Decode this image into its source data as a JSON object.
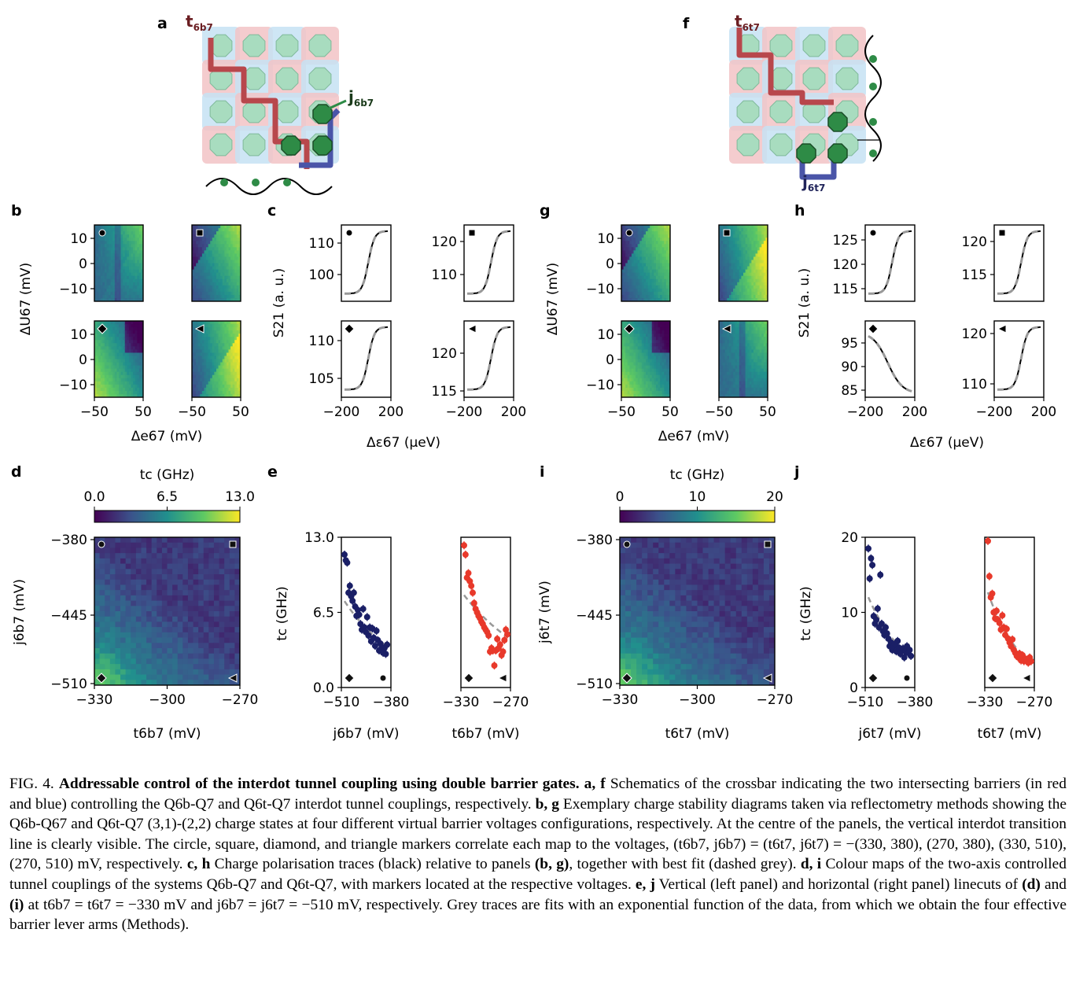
{
  "figure_label": "FIG. 4.",
  "caption": {
    "title": "Addressable control of the interdot tunnel coupling using double barrier gates.",
    "segments": [
      {
        "b": "a, f",
        "t": " Schematics of the crossbar indicating the two intersecting barriers (in red and blue) controlling the Q6b-Q7 and Q6t-Q7 interdot tunnel couplings, respectively. "
      },
      {
        "b": "b, g",
        "t": " Exemplary charge stability diagrams taken via reflectometry methods showing the Q6b-Q67 and Q6t-Q7 (3,1)-(2,2) charge states at four different virtual barrier voltages configurations, respectively. At the centre of the panels, the vertical interdot transition line is clearly visible. The circle, square, diamond, and triangle markers correlate each map to the voltages, (t6b7, j6b7) = (t6t7, j6t7) = −(330, 380), (270, 380), (330, 510), (270, 510) mV, respectively. "
      },
      {
        "b": "c, h",
        "t": " Charge polarisation traces (black) relative to panels "
      },
      {
        "b": "(b, g)",
        "t": ", together with best fit (dashed grey). "
      },
      {
        "b": "d, i",
        "t": " Colour maps of the two-axis controlled tunnel couplings of the systems Q6b-Q7 and Q6t-Q7, with markers located at the respective voltages. "
      },
      {
        "b": "e, j",
        "t": " Vertical (left panel) and horizontal (right panel) linecuts of "
      },
      {
        "b": "(d)",
        "t": " and "
      },
      {
        "b": "(i)",
        "t": " at t6b7 = t6t7 = −330 mV and j6b7 = j6t7 = −510 mV, respectively. Grey traces are fits with an exponential function of the data, from which we obtain the four effective barrier lever arms (Methods)."
      }
    ]
  },
  "panel_letters": [
    "a",
    "b",
    "c",
    "d",
    "e",
    "f",
    "g",
    "h",
    "i",
    "j"
  ],
  "schematic_labels": {
    "a_top": "t6b7",
    "a_right": "j6b7",
    "f_top": "t6t7",
    "f_bottom": "j6t7"
  },
  "axes": {
    "b_x": "Δe67 (mV)",
    "b_y": "ΔU67 (mV)",
    "b_xticks": [
      "−50",
      "50"
    ],
    "b_yticks": [
      "10",
      "0",
      "−10"
    ],
    "c_x": "Δε67 (μeV)",
    "c_y": "S21 (a. u.)",
    "c_xticks": [
      "−200",
      "200"
    ],
    "c_yticks_1": [
      "110",
      "100"
    ],
    "c_yticks_2": [
      "120",
      "110"
    ],
    "c_yticks_3": [
      "110",
      "105"
    ],
    "c_yticks_4": [
      "120",
      "115"
    ],
    "h_yticks_1": [
      "125",
      "120",
      "115"
    ],
    "h_yticks_2": [
      "120",
      "115"
    ],
    "h_yticks_3": [
      "95",
      "90",
      "85"
    ],
    "h_yticks_4": [
      "120",
      "110"
    ],
    "d_colorbar_label": "tc (GHz)",
    "d_colorbar_ticks": [
      "0.0",
      "6.5",
      "13.0"
    ],
    "d_x": "t6b7 (mV)",
    "d_y": "j6b7 (mV)",
    "d_xticks": [
      "−330",
      "−300",
      "−270"
    ],
    "d_yticks": [
      "−380",
      "−445",
      "−510"
    ],
    "i_colorbar_ticks": [
      "0",
      "10",
      "20"
    ],
    "i_x": "t6t7 (mV)",
    "i_y": "j6t7 (mV)",
    "e_y": "tc (GHz)",
    "e_yticks": [
      "13.0",
      "6.5",
      "0.0"
    ],
    "e_x1": "j6b7 (mV)",
    "e_x2": "t6b7 (mV)",
    "e_x1ticks": [
      "−510",
      "−380"
    ],
    "e_x2ticks": [
      "−330",
      "−270"
    ],
    "j_yticks": [
      "20",
      "10",
      "0"
    ],
    "j_x1": "j6t7 (mV)",
    "j_x2": "t6t7 (mV)"
  },
  "chart_data": [
    {
      "panel": "e",
      "type": "scatter",
      "series": [
        {
          "name": "",
          "x": [
            -510,
            -506,
            -502,
            -498,
            -494,
            -490,
            -486,
            -482,
            -478,
            -474,
            -470,
            -466,
            -462,
            -458,
            -454,
            -450,
            -446,
            -442,
            -438,
            -434,
            -430,
            -426,
            -422,
            -418,
            -414,
            -410,
            -406,
            -402,
            -398,
            -394,
            -390,
            -386,
            -382
          ],
          "y": [
            11.5,
            11.0,
            10.8,
            8.2,
            8.8,
            7.9,
            7.5,
            8.2,
            7.0,
            6.2,
            6.7,
            6.3,
            5.5,
            5.0,
            6.8,
            5.2,
            4.8,
            6.1,
            4.5,
            5.2,
            4.0,
            5.1,
            4.3,
            3.6,
            4.9,
            4.1,
            3.2,
            3.8,
            3.5,
            3.0,
            3.4,
            2.9,
            3.7
          ]
        },
        {
          "name": "",
          "x": [
            -330,
            -328,
            -326,
            -324,
            -322,
            -320,
            -318,
            -316,
            -314,
            -312,
            -310,
            -308,
            -306,
            -304,
            -302,
            -300,
            -298,
            -296,
            -294,
            -292,
            -290,
            -288,
            -286,
            -284,
            -282,
            -280,
            -278,
            -276,
            -274,
            -272,
            -270
          ],
          "y": [
            12.3,
            11.5,
            9.5,
            9.9,
            9.2,
            8.8,
            8.2,
            7.3,
            6.8,
            6.5,
            6.2,
            6.0,
            5.7,
            5.5,
            5.2,
            5.0,
            4.8,
            4.5,
            3.1,
            3.4,
            3.2,
            1.9,
            3.2,
            4.2,
            3.4,
            3.7,
            2.8,
            3.1,
            4.1,
            5.0,
            4.6
          ]
        }
      ]
    },
    {
      "panel": "j",
      "type": "scatter",
      "series": [
        {
          "name": "",
          "x": [
            -510,
            -506,
            -502,
            -498,
            -494,
            -490,
            -486,
            -482,
            -478,
            -474,
            -470,
            -466,
            -462,
            -458,
            -454,
            -450,
            -446,
            -442,
            -438,
            -434,
            -430,
            -426,
            -422,
            -418,
            -414,
            -410,
            -406,
            -402,
            -398,
            -394,
            -390,
            -386,
            -382
          ],
          "y": [
            18.5,
            14.5,
            17.2,
            16.3,
            9.5,
            8.5,
            9.0,
            10.5,
            8.0,
            15.0,
            8.5,
            7.5,
            7.0,
            8.0,
            7.2,
            6.5,
            5.5,
            6.0,
            5.0,
            5.5,
            5.8,
            4.8,
            6.2,
            5.3,
            4.5,
            5.0,
            5.2,
            4.0,
            4.8,
            5.5,
            4.6,
            5.0,
            4.2
          ]
        },
        {
          "name": "",
          "x": [
            -330,
            -328,
            -326,
            -324,
            -322,
            -320,
            -318,
            -316,
            -314,
            -312,
            -310,
            -308,
            -306,
            -304,
            -302,
            -300,
            -298,
            -296,
            -294,
            -292,
            -290,
            -288,
            -286,
            -284,
            -282,
            -280,
            -278,
            -276,
            -274,
            -272,
            -270
          ],
          "y": [
            19.5,
            14.8,
            12.0,
            12.5,
            10.0,
            9.2,
            10.2,
            9.0,
            8.6,
            7.7,
            9.6,
            8.0,
            7.0,
            7.8,
            6.5,
            6.0,
            5.5,
            6.4,
            5.0,
            4.6,
            4.2,
            4.0,
            4.5,
            3.6,
            4.3,
            3.5,
            3.8,
            3.7,
            3.3,
            4.0,
            3.5
          ]
        }
      ]
    }
  ]
}
